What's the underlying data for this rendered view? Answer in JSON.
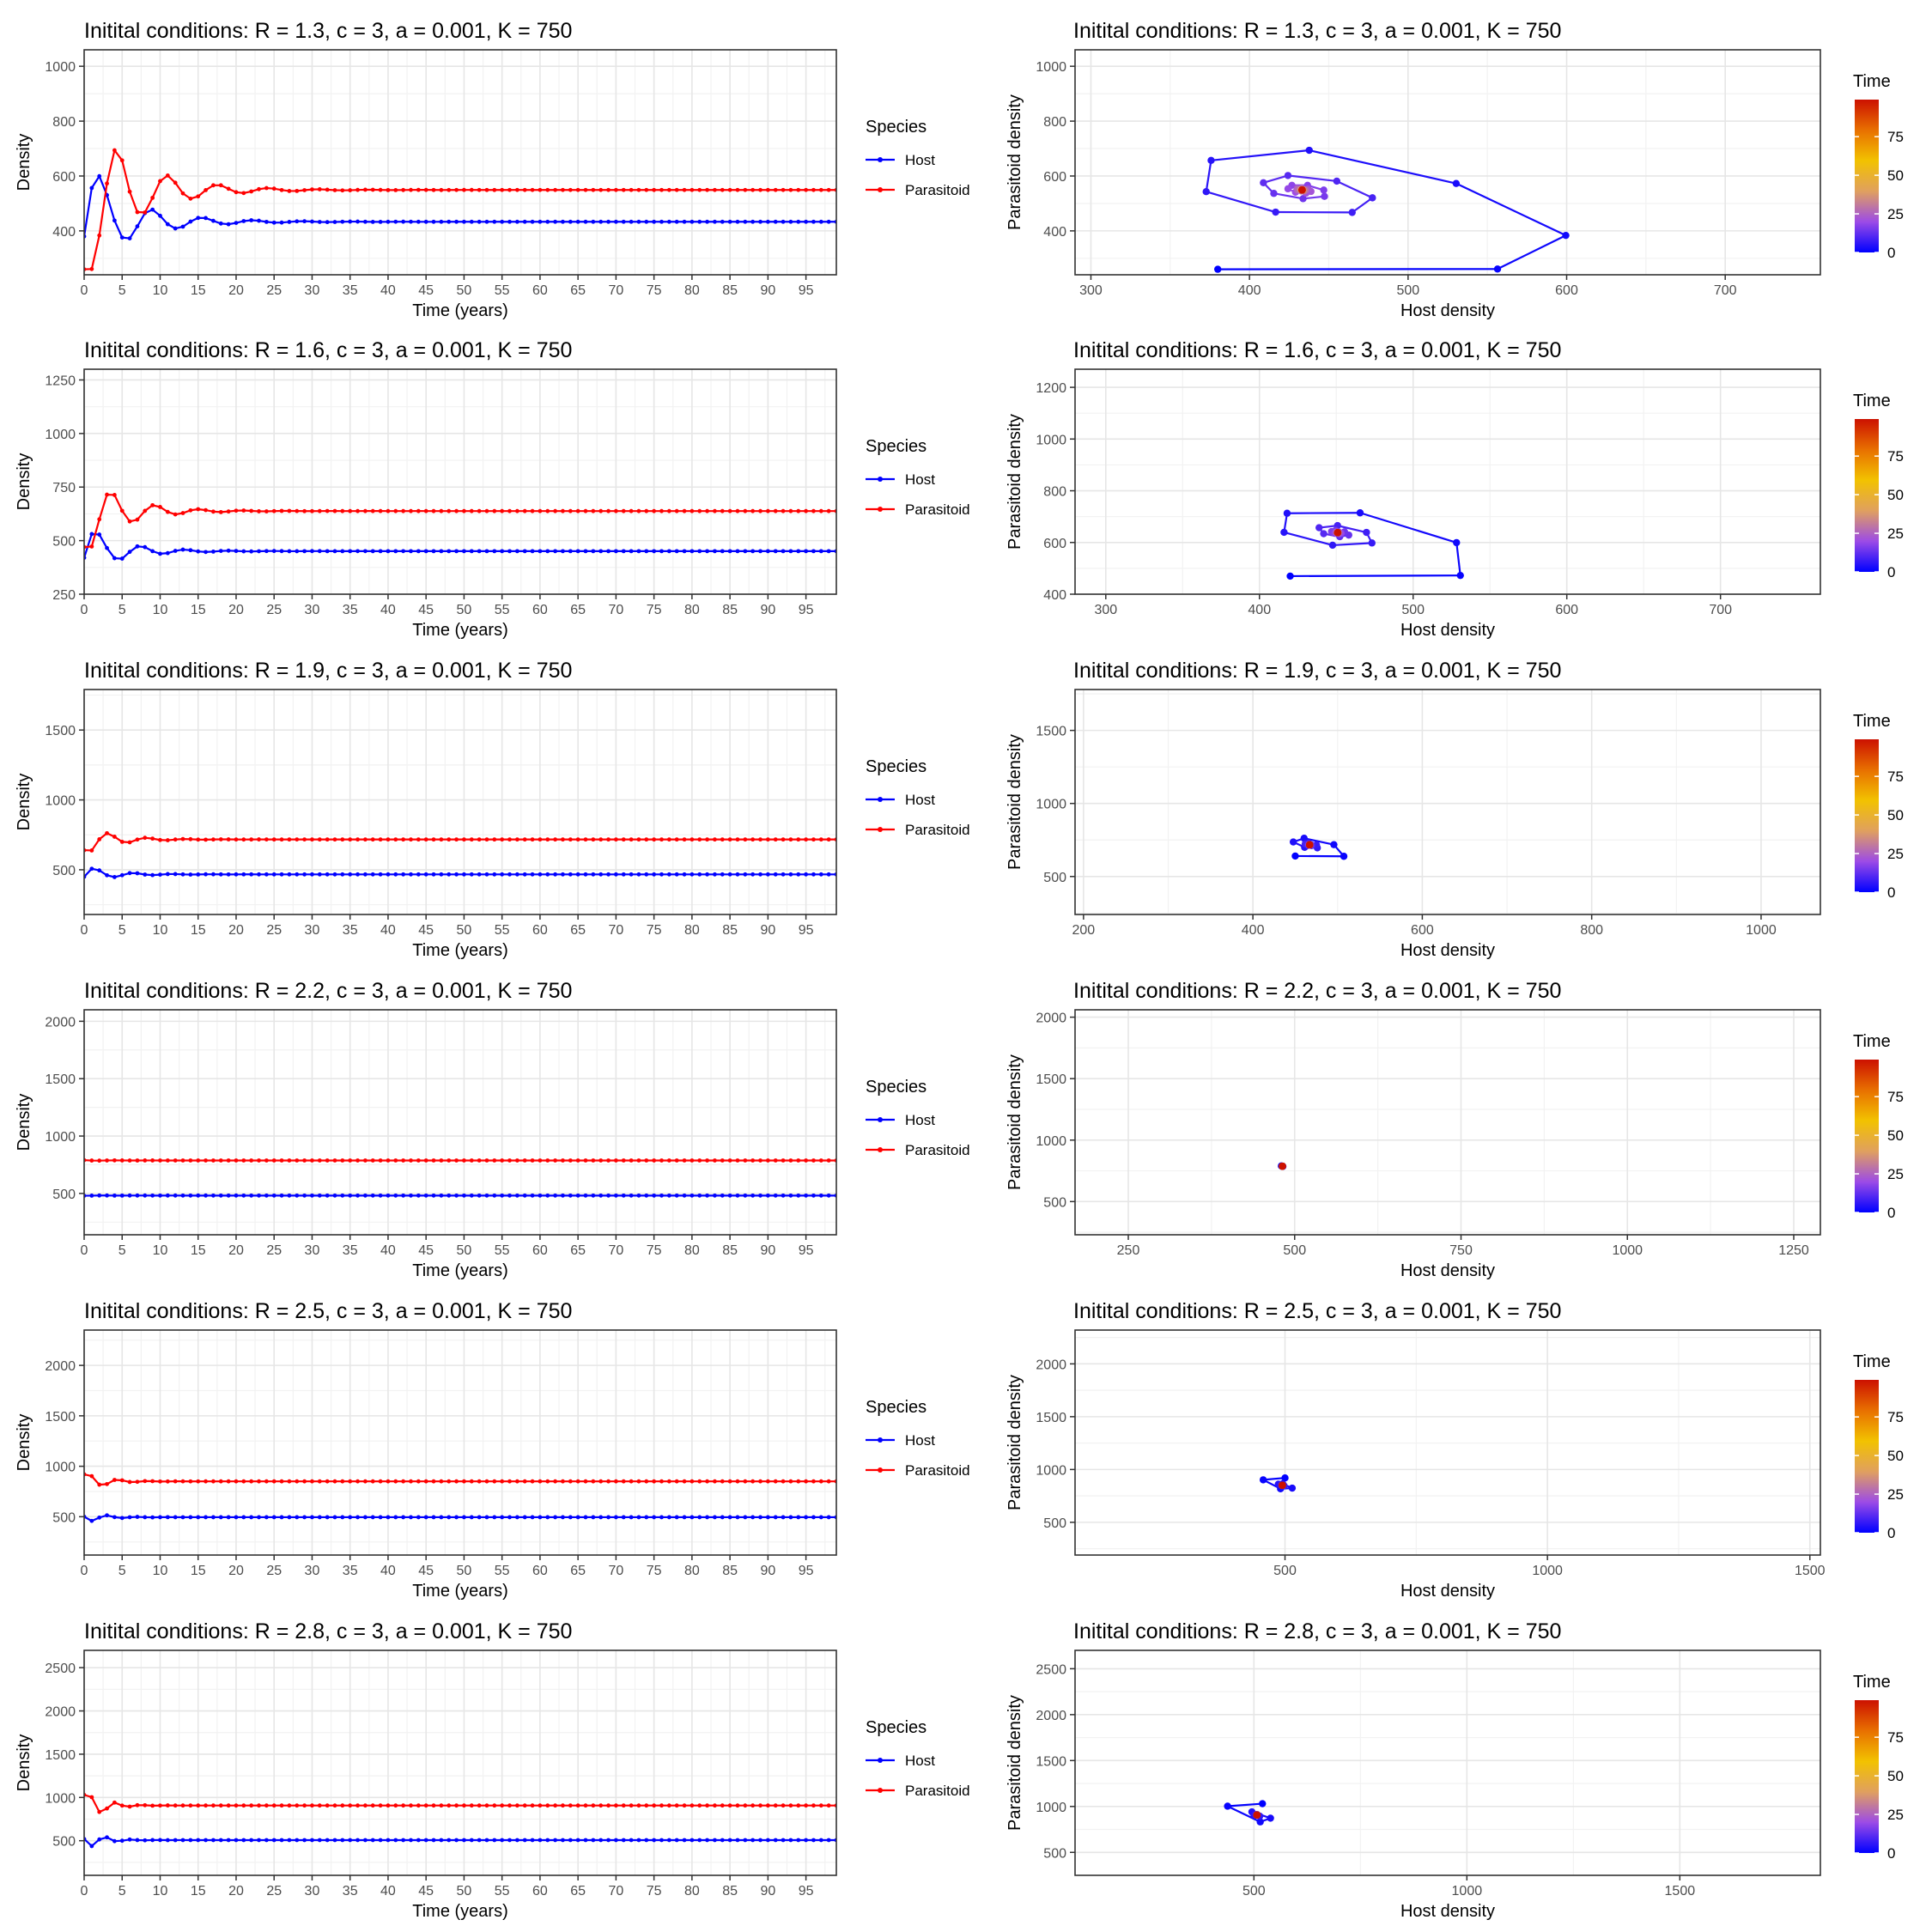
{
  "ts_common": {
    "xlabel": "Time (years)",
    "ylabel": "Density",
    "x_ticks": [
      0,
      5,
      10,
      15,
      20,
      25,
      30,
      35,
      40,
      45,
      50,
      55,
      60,
      65,
      70,
      75,
      80,
      85,
      90,
      95
    ],
    "xlim": [
      0,
      99
    ],
    "legend_title": "Species",
    "series_names": [
      "Host",
      "Parasitoid"
    ],
    "series_colors": [
      "#0000FF",
      "#FF0000"
    ]
  },
  "phase_common": {
    "xlabel": "Host density",
    "ylabel": "Parasitoid density",
    "legend_title": "Time",
    "gradient_colors": [
      "#0000FF",
      "#9C4BE6",
      "#E0A05F",
      "#F2C200",
      "#E87000",
      "#CC1100"
    ],
    "colorbar_ticks": [
      0,
      25,
      50,
      75
    ]
  },
  "chart_data": [
    {
      "type": "line",
      "panel": "timeseries",
      "title": "Initital conditions: R = 1.3, c = 3, a = 0.001, K = 750",
      "y_ticks": [
        400,
        600,
        800,
        1000
      ],
      "ylim": [
        240,
        1060
      ],
      "model": {
        "R": 1.3,
        "c": 3,
        "a": 0.001,
        "K": 750,
        "H0": 380,
        "P0": 260
      }
    },
    {
      "type": "scatter",
      "panel": "phase",
      "title": "Initital conditions: R = 1.3, c = 3, a = 0.001, K = 750",
      "x_ticks": [
        300,
        400,
        500,
        600,
        700
      ],
      "xlim": [
        290,
        760
      ],
      "y_ticks": [
        400,
        600,
        800,
        1000
      ],
      "ylim": [
        240,
        1060
      ],
      "model": {
        "R": 1.3,
        "c": 3,
        "a": 0.001,
        "K": 750,
        "H0": 380,
        "P0": 260
      }
    },
    {
      "type": "line",
      "panel": "timeseries",
      "title": "Initital conditions: R = 1.6, c = 3, a = 0.001, K = 750",
      "y_ticks": [
        250,
        500,
        750,
        1000,
        1250
      ],
      "ylim": [
        250,
        1300
      ],
      "model": {
        "R": 1.6,
        "c": 3,
        "a": 0.001,
        "K": 750,
        "H0": 420,
        "P0": 470
      }
    },
    {
      "type": "scatter",
      "panel": "phase",
      "title": "Initital conditions: R = 1.6, c = 3, a = 0.001, K = 750",
      "x_ticks": [
        300,
        400,
        500,
        600,
        700
      ],
      "xlim": [
        280,
        765
      ],
      "y_ticks": [
        400,
        600,
        800,
        1000,
        1200
      ],
      "ylim": [
        400,
        1270
      ],
      "model": {
        "R": 1.6,
        "c": 3,
        "a": 0.001,
        "K": 750,
        "H0": 420,
        "P0": 470
      }
    },
    {
      "type": "line",
      "panel": "timeseries",
      "title": "Initital conditions: R = 1.9, c = 3, a = 0.001, K = 750",
      "y_ticks": [
        500,
        1000,
        1500
      ],
      "ylim": [
        180,
        1790
      ],
      "model": {
        "R": 1.9,
        "c": 3,
        "a": 0.001,
        "K": 750,
        "H0": 450,
        "P0": 640
      }
    },
    {
      "type": "scatter",
      "panel": "phase",
      "title": "Initital conditions: R = 1.9, c = 3, a = 0.001, K = 750",
      "x_ticks": [
        200,
        400,
        600,
        800,
        1000
      ],
      "xlim": [
        190,
        1070
      ],
      "y_ticks": [
        500,
        1000,
        1500
      ],
      "ylim": [
        240,
        1780
      ],
      "model": {
        "R": 1.9,
        "c": 3,
        "a": 0.001,
        "K": 750,
        "H0": 450,
        "P0": 640
      }
    },
    {
      "type": "line",
      "panel": "timeseries",
      "title": "Initital conditions: R = 2.2, c = 3, a = 0.001, K = 750",
      "y_ticks": [
        500,
        1000,
        1500,
        2000
      ],
      "ylim": [
        140,
        2100
      ],
      "model": {
        "R": 2.2,
        "c": 3,
        "a": 0.001,
        "K": 750,
        "H0": 480,
        "P0": 790
      }
    },
    {
      "type": "scatter",
      "panel": "phase",
      "title": "Initital conditions: R = 2.2, c = 3, a = 0.001, K = 750",
      "x_ticks": [
        250,
        500,
        750,
        1000,
        1250
      ],
      "xlim": [
        170,
        1290
      ],
      "y_ticks": [
        500,
        1000,
        1500,
        2000
      ],
      "ylim": [
        230,
        2060
      ],
      "model": {
        "R": 2.2,
        "c": 3,
        "a": 0.001,
        "K": 750,
        "H0": 480,
        "P0": 790
      }
    },
    {
      "type": "line",
      "panel": "timeseries",
      "title": "Initital conditions: R = 2.5, c = 3, a = 0.001, K = 750",
      "y_ticks": [
        500,
        1000,
        1500,
        2000
      ],
      "ylim": [
        120,
        2350
      ],
      "model": {
        "R": 2.5,
        "c": 3,
        "a": 0.001,
        "K": 750,
        "H0": 500,
        "P0": 920
      }
    },
    {
      "type": "scatter",
      "panel": "phase",
      "title": "Initital conditions: R = 2.5, c = 3, a = 0.001, K = 750",
      "x_ticks": [
        500,
        1000,
        1500
      ],
      "xlim": [
        100,
        1520
      ],
      "y_ticks": [
        500,
        1000,
        1500,
        2000
      ],
      "ylim": [
        190,
        2320
      ],
      "model": {
        "R": 2.5,
        "c": 3,
        "a": 0.001,
        "K": 750,
        "H0": 500,
        "P0": 920
      }
    },
    {
      "type": "line",
      "panel": "timeseries",
      "title": "Initital conditions: R = 2.8, c = 3, a = 0.001, K = 750",
      "y_ticks": [
        500,
        1000,
        1500,
        2000,
        2500
      ],
      "ylim": [
        100,
        2700
      ],
      "model": {
        "R": 2.8,
        "c": 3,
        "a": 0.001,
        "K": 750,
        "H0": 520,
        "P0": 1030
      }
    },
    {
      "type": "scatter",
      "panel": "phase",
      "title": "Initital conditions: R = 2.8, c = 3, a = 0.001, K = 750",
      "x_ticks": [
        500,
        1000,
        1500
      ],
      "xlim": [
        80,
        1830
      ],
      "y_ticks": [
        500,
        1000,
        1500,
        2000,
        2500
      ],
      "ylim": [
        250,
        2700
      ],
      "model": {
        "R": 2.8,
        "c": 3,
        "a": 0.001,
        "K": 750,
        "H0": 520,
        "P0": 1030
      }
    }
  ]
}
